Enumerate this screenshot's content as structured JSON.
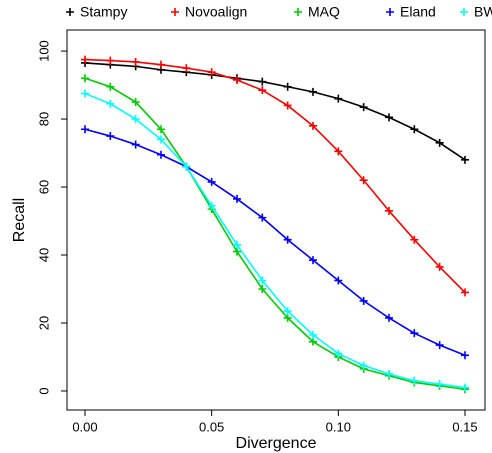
{
  "chart_data": {
    "type": "line",
    "x_label": "Divergence",
    "y_label": "Recall",
    "x": [
      0,
      0.01,
      0.02,
      0.03,
      0.04,
      0.05,
      0.06,
      0.07,
      0.08,
      0.09,
      0.1,
      0.11,
      0.12,
      0.13,
      0.14,
      0.15
    ],
    "series": [
      {
        "name": "Stampy",
        "color": "#000000",
        "values": [
          96.5,
          96,
          95.5,
          94.5,
          93.8,
          93,
          92,
          91,
          89.5,
          88,
          86,
          83.5,
          80.5,
          77,
          73,
          68
        ]
      },
      {
        "name": "Novoalign",
        "color": "#ff0000",
        "values": [
          97.5,
          97.2,
          96.8,
          96,
          95,
          93.8,
          91.5,
          88.5,
          84,
          78,
          70.5,
          62,
          53,
          44.5,
          36.5,
          29
        ]
      },
      {
        "name": "MAQ",
        "color": "#00cd00",
        "values": [
          92,
          89.5,
          85,
          77,
          66,
          53.5,
          41,
          30,
          21.5,
          14.5,
          10,
          6.5,
          4.5,
          2.5,
          1.5,
          0.5
        ]
      },
      {
        "name": "Eland",
        "color": "#0000ff",
        "values": [
          77,
          75,
          72.5,
          69.5,
          66,
          61.5,
          56.5,
          51,
          44.5,
          38.5,
          32.5,
          26.5,
          21.5,
          17,
          13.5,
          10.5
        ]
      },
      {
        "name": "BWA",
        "color": "#00ffff",
        "values": [
          87.5,
          84.5,
          80,
          74,
          66,
          54.5,
          43,
          32.5,
          23.5,
          16.5,
          11,
          7.5,
          5,
          3,
          2,
          1
        ]
      }
    ],
    "xlim": [
      -0.0071,
      0.1579
    ],
    "ylim": [
      -5.6,
      106.2
    ],
    "xticks": [
      {
        "value": 0,
        "label": "0.00"
      },
      0.05,
      {
        "value": 0.1,
        "label": "0.10"
      },
      0.15
    ],
    "yticks": [
      0,
      20,
      40,
      60,
      80,
      100
    ],
    "legend": "top",
    "grid": false
  }
}
